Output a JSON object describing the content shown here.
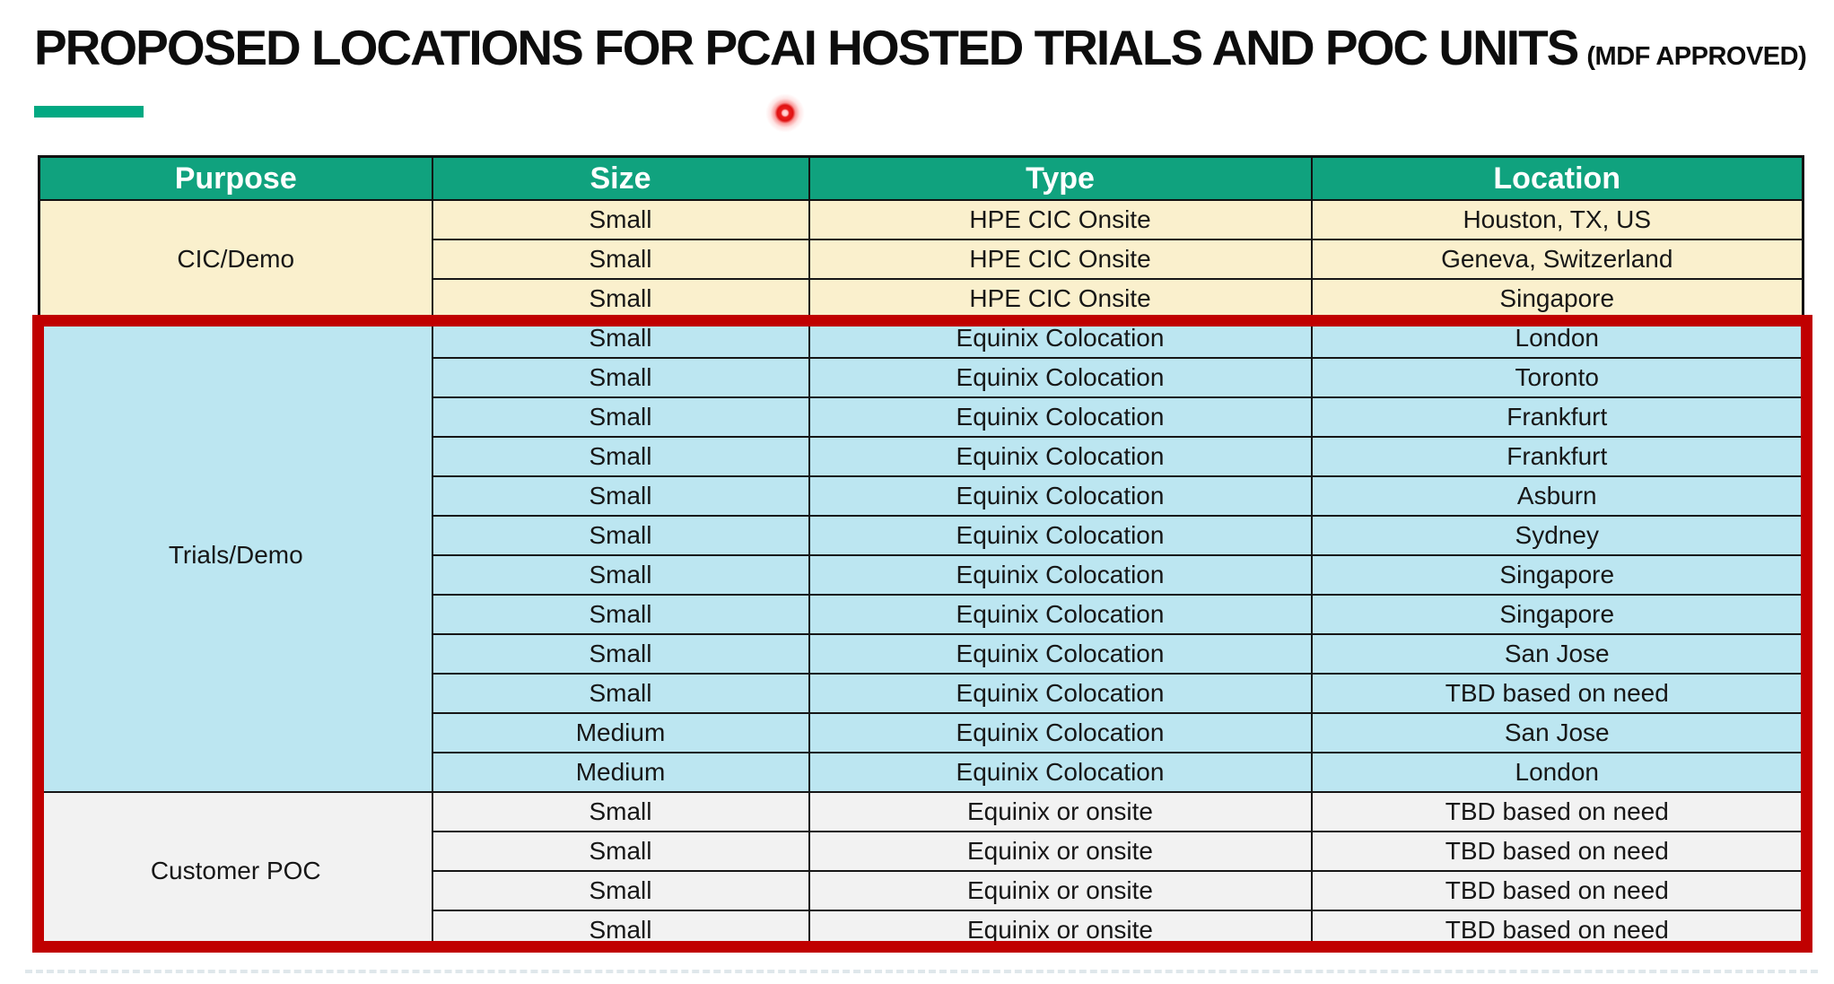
{
  "title": {
    "main": "PROPOSED LOCATIONS FOR PCAI HOSTED TRIALS AND POC UNITS",
    "suffix": "(MDF APPROVED)"
  },
  "colors": {
    "header_bg": "#10A27E",
    "accent_underline": "#01A982",
    "cic_bg": "#FAF0CD",
    "trials_bg": "#BCE6F1",
    "poc_bg": "#F2F2F2",
    "highlight_border": "#C00000"
  },
  "table": {
    "headers": [
      "Purpose",
      "Size",
      "Type",
      "Location"
    ],
    "sections": [
      {
        "purpose": "CIC/Demo",
        "bg": "#FAF0CD",
        "rows": [
          {
            "size": "Small",
            "type": "HPE CIC Onsite",
            "location": "Houston, TX, US"
          },
          {
            "size": "Small",
            "type": "HPE CIC Onsite",
            "location": "Geneva, Switzerland"
          },
          {
            "size": "Small",
            "type": "HPE CIC Onsite",
            "location": "Singapore"
          }
        ]
      },
      {
        "purpose": "Trials/Demo",
        "bg": "#BCE6F1",
        "rows": [
          {
            "size": "Small",
            "type": "Equinix Colocation",
            "location": "London"
          },
          {
            "size": "Small",
            "type": "Equinix Colocation",
            "location": "Toronto"
          },
          {
            "size": "Small",
            "type": "Equinix Colocation",
            "location": "Frankfurt"
          },
          {
            "size": "Small",
            "type": "Equinix Colocation",
            "location": "Frankfurt"
          },
          {
            "size": "Small",
            "type": "Equinix Colocation",
            "location": "Asburn"
          },
          {
            "size": "Small",
            "type": "Equinix Colocation",
            "location": "Sydney"
          },
          {
            "size": "Small",
            "type": "Equinix Colocation",
            "location": "Singapore"
          },
          {
            "size": "Small",
            "type": "Equinix Colocation",
            "location": "Singapore"
          },
          {
            "size": "Small",
            "type": "Equinix Colocation",
            "location": "San Jose"
          },
          {
            "size": "Small",
            "type": "Equinix Colocation",
            "location": "TBD based on need"
          },
          {
            "size": "Medium",
            "type": "Equinix Colocation",
            "location": "San Jose"
          },
          {
            "size": "Medium",
            "type": "Equinix Colocation",
            "location": "London"
          }
        ]
      },
      {
        "purpose": "Customer POC",
        "bg": "#F2F2F2",
        "rows": [
          {
            "size": "Small",
            "type": "Equinix or onsite",
            "location": "TBD based on need"
          },
          {
            "size": "Small",
            "type": "Equinix or onsite",
            "location": "TBD based on need"
          },
          {
            "size": "Small",
            "type": "Equinix or onsite",
            "location": "TBD based on need"
          },
          {
            "size": "Small",
            "type": "Equinix or onsite",
            "location": "TBD based on need"
          }
        ]
      }
    ]
  }
}
